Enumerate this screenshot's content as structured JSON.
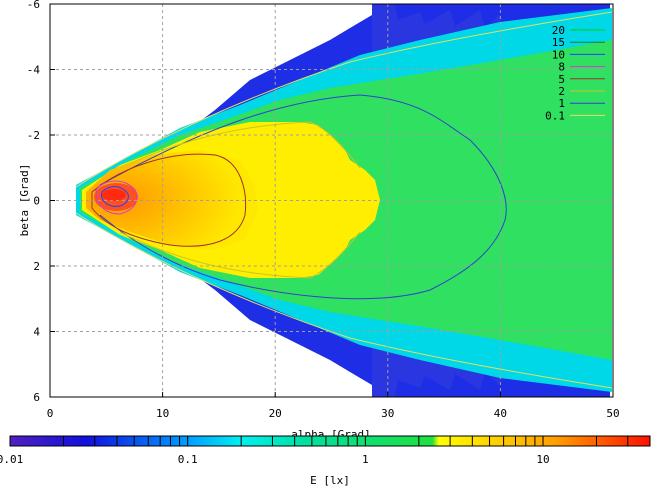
{
  "chart_data": {
    "type": "heatmap",
    "xlabel": "alpha [Grad]",
    "ylabel": "beta [Grad]",
    "xlim": [
      0,
      50
    ],
    "ylim": [
      6,
      -6
    ],
    "x_ticks": [
      "0",
      "10",
      "20",
      "30",
      "40",
      "50"
    ],
    "y_ticks": [
      "-6",
      "-4",
      "-2",
      "0",
      "2",
      "4",
      "6"
    ],
    "grid": true,
    "legend_position": "top-right",
    "contour_levels": [
      {
        "label": "20",
        "value": 20,
        "color": "#00d100"
      },
      {
        "label": "15",
        "value": 15,
        "color": "#208020"
      },
      {
        "label": "10",
        "value": 10,
        "color": "#2040ff"
      },
      {
        "label": "8",
        "value": 8,
        "color": "#d03cd0"
      },
      {
        "label": "5",
        "value": 5,
        "color": "#a03030"
      },
      {
        "label": "2",
        "value": 2,
        "color": "#c8c820"
      },
      {
        "label": "1",
        "value": 1,
        "color": "#3040d0"
      },
      {
        "label": "0.1",
        "value": 0.1,
        "color": "#e0e060"
      }
    ],
    "colorbar": {
      "label": "E [lx]",
      "scale": "log",
      "range": [
        0.01,
        40
      ],
      "ticks": [
        "0.01",
        "0.1",
        "1",
        "10"
      ]
    }
  }
}
